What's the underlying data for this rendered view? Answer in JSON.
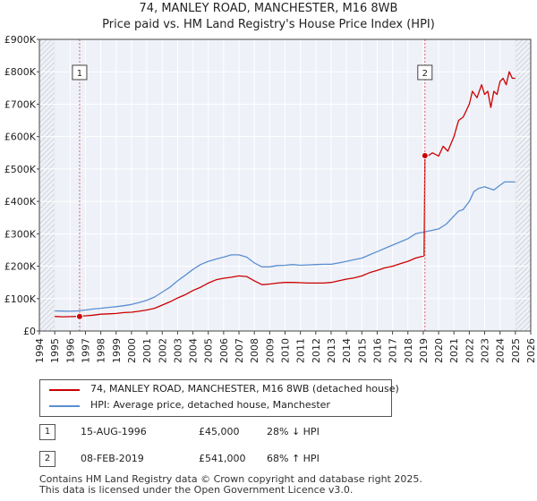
{
  "title_line1": "74, MANLEY ROAD, MANCHESTER, M16 8WB",
  "title_line2": "Price paid vs. HM Land Registry's House Price Index (HPI)",
  "chart_data": {
    "type": "line",
    "title": "Price paid vs. HM Land Registry's House Price Index (HPI)",
    "xlabel": "",
    "ylabel": "",
    "xlim": [
      1995.0,
      2026.0
    ],
    "ylim": [
      0,
      900000
    ],
    "x_ticks": [
      "1994",
      "1995",
      "1996",
      "1997",
      "1998",
      "1999",
      "2000",
      "2001",
      "2002",
      "2003",
      "2004",
      "2005",
      "2006",
      "2007",
      "2008",
      "2009",
      "2010",
      "2011",
      "2012",
      "2013",
      "2014",
      "2015",
      "2016",
      "2017",
      "2018",
      "2019",
      "2020",
      "2021",
      "2022",
      "2023",
      "2024",
      "2025",
      "2026"
    ],
    "y_ticks": [
      {
        "value": 0,
        "label": "£0"
      },
      {
        "value": 100000,
        "label": "£100K"
      },
      {
        "value": 200000,
        "label": "£200K"
      },
      {
        "value": 300000,
        "label": "£300K"
      },
      {
        "value": 400000,
        "label": "£400K"
      },
      {
        "value": 500000,
        "label": "£500K"
      },
      {
        "value": 600000,
        "label": "£600K"
      },
      {
        "value": 700000,
        "label": "£700K"
      },
      {
        "value": 800000,
        "label": "£800K"
      },
      {
        "value": 900000,
        "label": "£900K"
      }
    ],
    "grid": true,
    "hatched_before": 1995.0,
    "hatched_after": 2025.0,
    "series": [
      {
        "name": "74, MANLEY ROAD, MANCHESTER, M16 8WB (detached house)",
        "color": "#cc0000",
        "x": [
          1995.0,
          1995.5,
          1996.0,
          1996.62,
          1997.0,
          1997.5,
          1998.0,
          1998.5,
          1999.0,
          1999.5,
          2000.0,
          2000.5,
          2001.0,
          2001.5,
          2002.0,
          2002.5,
          2003.0,
          2003.5,
          2004.0,
          2004.5,
          2005.0,
          2005.5,
          2006.0,
          2006.5,
          2007.0,
          2007.5,
          2008.0,
          2008.5,
          2009.0,
          2009.5,
          2010.0,
          2010.5,
          2011.0,
          2011.5,
          2012.0,
          2012.5,
          2013.0,
          2013.5,
          2014.0,
          2014.5,
          2015.0,
          2015.5,
          2016.0,
          2016.5,
          2017.0,
          2017.5,
          2018.0,
          2018.5,
          2019.05,
          2019.11,
          2019.3,
          2019.6,
          2020.0,
          2020.3,
          2020.6,
          2021.0,
          2021.3,
          2021.6,
          2022.0,
          2022.2,
          2022.5,
          2022.8,
          2023.0,
          2023.2,
          2023.4,
          2023.6,
          2023.8,
          2024.0,
          2024.2,
          2024.4,
          2024.6,
          2024.8,
          2025.0
        ],
        "y": [
          45000,
          44000,
          44500,
          45000,
          47000,
          49000,
          52000,
          53000,
          54000,
          57000,
          58000,
          61000,
          65000,
          70000,
          80000,
          90000,
          102000,
          112000,
          125000,
          135000,
          148000,
          158000,
          163000,
          166000,
          170000,
          168000,
          155000,
          143000,
          145000,
          148000,
          150000,
          150000,
          149000,
          148000,
          148000,
          148000,
          150000,
          155000,
          160000,
          164000,
          170000,
          180000,
          187000,
          195000,
          200000,
          208000,
          215000,
          225000,
          232000,
          541000,
          540000,
          550000,
          540000,
          570000,
          555000,
          600000,
          650000,
          660000,
          700000,
          740000,
          720000,
          760000,
          730000,
          740000,
          690000,
          740000,
          730000,
          770000,
          780000,
          760000,
          800000,
          780000,
          780000
        ]
      },
      {
        "name": "HPI: Average price, detached house, Manchester",
        "color": "#5a8fd0",
        "x": [
          1995.0,
          1995.5,
          1996.0,
          1996.5,
          1997.0,
          1997.5,
          1998.0,
          1998.5,
          1999.0,
          1999.5,
          2000.0,
          2000.5,
          2001.0,
          2001.5,
          2002.0,
          2002.5,
          2003.0,
          2003.5,
          2004.0,
          2004.5,
          2005.0,
          2005.5,
          2006.0,
          2006.5,
          2007.0,
          2007.5,
          2008.0,
          2008.5,
          2009.0,
          2009.5,
          2010.0,
          2010.5,
          2011.0,
          2011.5,
          2012.0,
          2012.5,
          2013.0,
          2013.5,
          2014.0,
          2014.5,
          2015.0,
          2015.5,
          2016.0,
          2016.5,
          2017.0,
          2017.5,
          2018.0,
          2018.5,
          2019.0,
          2019.5,
          2020.0,
          2020.5,
          2021.0,
          2021.3,
          2021.6,
          2022.0,
          2022.3,
          2022.6,
          2023.0,
          2023.3,
          2023.6,
          2024.0,
          2024.3,
          2024.6,
          2025.0
        ],
        "y": [
          62000,
          61500,
          61000,
          62000,
          65000,
          68000,
          70000,
          73000,
          75000,
          78000,
          82000,
          88000,
          95000,
          105000,
          120000,
          135000,
          155000,
          172000,
          190000,
          205000,
          215000,
          222000,
          228000,
          235000,
          235000,
          228000,
          210000,
          198000,
          198000,
          202000,
          203000,
          205000,
          203000,
          204000,
          205000,
          206000,
          206000,
          210000,
          215000,
          220000,
          225000,
          235000,
          245000,
          255000,
          265000,
          275000,
          285000,
          300000,
          305000,
          310000,
          315000,
          330000,
          355000,
          370000,
          375000,
          400000,
          430000,
          440000,
          445000,
          440000,
          435000,
          450000,
          460000,
          460000,
          460000
        ]
      }
    ],
    "markers": [
      {
        "label": "1",
        "x": 1996.62,
        "y": 45000
      },
      {
        "label": "2",
        "x": 2019.11,
        "y": 541000
      }
    ]
  },
  "legend": {
    "property_label": "74, MANLEY ROAD, MANCHESTER, M16 8WB (detached house)",
    "hpi_label": "HPI: Average price, detached house, Manchester"
  },
  "sales": [
    {
      "num": "1",
      "date": "15-AUG-1996",
      "price": "£45,000",
      "hpi_delta": "28% ↓ HPI"
    },
    {
      "num": "2",
      "date": "08-FEB-2019",
      "price": "£541,000",
      "hpi_delta": "68% ↑ HPI"
    }
  ],
  "footer_line1": "Contains HM Land Registry data © Crown copyright and database right 2025.",
  "footer_line2": "This data is licensed under the Open Government Licence v3.0."
}
